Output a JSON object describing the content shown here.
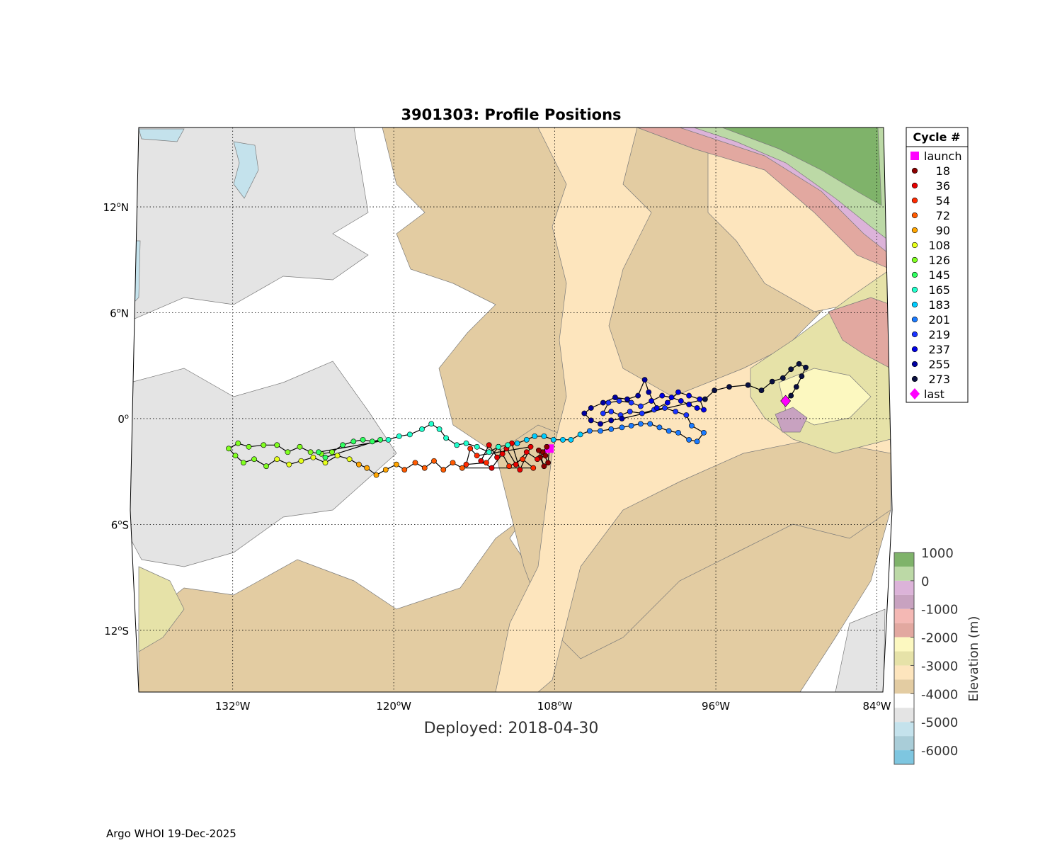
{
  "title": "3901303: Profile Positions",
  "deployed": "Deployed: 2018-04-30",
  "footer": "Argo WHOI 19-Dec-2025",
  "map": {
    "lon_range": [
      -139,
      -83.5
    ],
    "lat_range": [
      -15.5,
      16.5
    ],
    "lon_ticks": [
      {
        "value": -132,
        "label": "132",
        "hemi": "W"
      },
      {
        "value": -120,
        "label": "120",
        "hemi": "W"
      },
      {
        "value": -108,
        "label": "108",
        "hemi": "W"
      },
      {
        "value": -96,
        "label": "96",
        "hemi": "W"
      },
      {
        "value": -84,
        "label": "84",
        "hemi": "W"
      }
    ],
    "lat_ticks": [
      {
        "value": 12,
        "label": "12",
        "hemi": "N"
      },
      {
        "value": 6,
        "label": "6",
        "hemi": "N"
      },
      {
        "value": 0,
        "label": "0",
        "hemi": ""
      },
      {
        "value": -6,
        "label": "6",
        "hemi": "S"
      },
      {
        "value": -12,
        "label": "12",
        "hemi": "S"
      }
    ],
    "grid": true
  },
  "legend": {
    "header": "Cycle #",
    "placement": "right",
    "items": [
      {
        "label": "launch",
        "color": "#ff00ff",
        "marker": "square"
      },
      {
        "label": "18",
        "color": "#8b0000",
        "marker": "dot"
      },
      {
        "label": "36",
        "color": "#e60000",
        "marker": "dot"
      },
      {
        "label": "54",
        "color": "#ff2a00",
        "marker": "dot"
      },
      {
        "label": "72",
        "color": "#ff5a00",
        "marker": "dot"
      },
      {
        "label": "90",
        "color": "#ffa500",
        "marker": "dot"
      },
      {
        "label": "108",
        "color": "#e6ff1a",
        "marker": "dot"
      },
      {
        "label": "126",
        "color": "#80ff20",
        "marker": "dot"
      },
      {
        "label": "145",
        "color": "#30ff60",
        "marker": "dot"
      },
      {
        "label": "165",
        "color": "#20ffcc",
        "marker": "dot"
      },
      {
        "label": "183",
        "color": "#00ccff",
        "marker": "dot"
      },
      {
        "label": "201",
        "color": "#1a7aff",
        "marker": "dot"
      },
      {
        "label": "219",
        "color": "#1a33ff",
        "marker": "dot"
      },
      {
        "label": "237",
        "color": "#0000e6",
        "marker": "dot"
      },
      {
        "label": "255",
        "color": "#0000a0",
        "marker": "dot"
      },
      {
        "label": "273",
        "color": "#0a1040",
        "marker": "dot"
      },
      {
        "label": "last",
        "color": "#ff00ff",
        "marker": "diamond"
      }
    ]
  },
  "colorbar": {
    "label": "Elevation (m)",
    "tick_labels": [
      "1000",
      "0",
      "-1000",
      "-2000",
      "-3000",
      "-4000",
      "-5000",
      "-6000"
    ],
    "tick_values": [
      1000,
      0,
      -1000,
      -2000,
      -3000,
      -4000,
      -5000,
      -6000
    ],
    "range": [
      -6500,
      1000
    ],
    "bands": [
      {
        "from": 500,
        "to": 1000,
        "color": "#7fb36a"
      },
      {
        "from": 0,
        "to": 500,
        "color": "#bcd9a6"
      },
      {
        "from": -500,
        "to": 0,
        "color": "#dcb3d9"
      },
      {
        "from": -1000,
        "to": -500,
        "color": "#c8a2c0"
      },
      {
        "from": -1500,
        "to": -1000,
        "color": "#f4b8b4"
      },
      {
        "from": -2000,
        "to": -1500,
        "color": "#e2a8a0"
      },
      {
        "from": -2500,
        "to": -2000,
        "color": "#fcf8c0"
      },
      {
        "from": -3000,
        "to": -2500,
        "color": "#e6e2a8"
      },
      {
        "from": -3500,
        "to": -3000,
        "color": "#fde5bd"
      },
      {
        "from": -4000,
        "to": -3500,
        "color": "#e3cca2"
      },
      {
        "from": -4500,
        "to": -4000,
        "color": "#ffffff"
      },
      {
        "from": -5000,
        "to": -4500,
        "color": "#e4e4e4"
      },
      {
        "from": -5500,
        "to": -5000,
        "color": "#c4e2ec"
      },
      {
        "from": -6000,
        "to": -5500,
        "color": "#a9cdd8"
      },
      {
        "from": -6500,
        "to": -6000,
        "color": "#7ec6e0"
      }
    ]
  },
  "trajectory": [
    {
      "color": "#ff00ff",
      "points": [
        [
          -108.4,
          -1.7
        ]
      ]
    },
    {
      "color": "#8b0000",
      "points": [
        [
          -108.5,
          -2.5
        ],
        [
          -108.9,
          -1.9
        ],
        [
          -108.6,
          -1.6
        ],
        [
          -109.1,
          -2.2
        ],
        [
          -108.8,
          -2.7
        ],
        [
          -109.2,
          -1.8
        ],
        [
          -108.7,
          -2.1
        ]
      ]
    },
    {
      "color": "#e60000",
      "points": [
        [
          -109.3,
          -2.3
        ],
        [
          -110.1,
          -1.9
        ],
        [
          -110.9,
          -2.6
        ],
        [
          -111.6,
          -1.7
        ],
        [
          -112.3,
          -2.2
        ],
        [
          -112.9,
          -1.5
        ],
        [
          -113.5,
          -2.4
        ],
        [
          -112.7,
          -2.8
        ],
        [
          -111.9,
          -2.0
        ],
        [
          -111.2,
          -1.4
        ],
        [
          -110.6,
          -2.9
        ],
        [
          -109.8,
          -1.6
        ]
      ]
    },
    {
      "color": "#ff2a00",
      "points": [
        [
          -113.8,
          -2.1
        ],
        [
          -114.3,
          -1.7
        ],
        [
          -114.6,
          -2.6
        ],
        [
          -113.1,
          -2.5
        ],
        [
          -112.2,
          -1.6
        ],
        [
          -111.4,
          -2.7
        ],
        [
          -110.4,
          -2.3
        ],
        [
          -109.6,
          -2.8
        ]
      ]
    },
    {
      "color": "#ff5a00",
      "points": [
        [
          -114.9,
          -2.8
        ],
        [
          -115.6,
          -2.5
        ],
        [
          -116.3,
          -2.9
        ],
        [
          -117.0,
          -2.4
        ],
        [
          -117.7,
          -2.8
        ],
        [
          -118.4,
          -2.5
        ],
        [
          -119.2,
          -2.9
        ]
      ]
    },
    {
      "color": "#ffa500",
      "points": [
        [
          -119.8,
          -2.6
        ],
        [
          -120.6,
          -2.9
        ],
        [
          -121.3,
          -3.2
        ],
        [
          -122.0,
          -2.8
        ],
        [
          -122.6,
          -2.6
        ]
      ]
    },
    {
      "color": "#e6ff1a",
      "points": [
        [
          -123.3,
          -2.3
        ],
        [
          -124.2,
          -2.1
        ],
        [
          -125.1,
          -2.5
        ],
        [
          -126.0,
          -2.2
        ],
        [
          -126.9,
          -2.4
        ],
        [
          -127.8,
          -2.6
        ],
        [
          -128.7,
          -2.3
        ]
      ]
    },
    {
      "color": "#80ff20",
      "points": [
        [
          -129.5,
          -2.7
        ],
        [
          -130.4,
          -2.3
        ],
        [
          -131.2,
          -2.5
        ],
        [
          -131.8,
          -2.1
        ],
        [
          -132.3,
          -1.7
        ],
        [
          -131.6,
          -1.4
        ],
        [
          -130.8,
          -1.6
        ],
        [
          -129.7,
          -1.5
        ],
        [
          -128.7,
          -1.5
        ],
        [
          -127.9,
          -1.9
        ],
        [
          -127.0,
          -1.6
        ],
        [
          -126.2,
          -1.9
        ],
        [
          -125.4,
          -2.0
        ],
        [
          -124.6,
          -1.9
        ]
      ]
    },
    {
      "color": "#30ff60",
      "points": [
        [
          -123.8,
          -1.5
        ],
        [
          -123.0,
          -1.3
        ],
        [
          -122.3,
          -1.2
        ],
        [
          -121.6,
          -1.3
        ],
        [
          -121.0,
          -1.2
        ],
        [
          -125.1,
          -2.2
        ],
        [
          -125.6,
          -1.9
        ]
      ]
    },
    {
      "color": "#20ffcc",
      "points": [
        [
          -120.4,
          -1.2
        ],
        [
          -119.6,
          -1.0
        ],
        [
          -118.8,
          -0.9
        ],
        [
          -117.9,
          -0.6
        ],
        [
          -117.2,
          -0.3
        ],
        [
          -116.6,
          -0.6
        ],
        [
          -116.1,
          -1.1
        ],
        [
          -115.3,
          -1.5
        ],
        [
          -114.6,
          -1.4
        ],
        [
          -113.8,
          -1.6
        ],
        [
          -112.9,
          -1.9
        ],
        [
          -112.2,
          -1.6
        ],
        [
          -111.5,
          -1.5
        ]
      ]
    },
    {
      "color": "#00ccff",
      "points": [
        [
          -110.8,
          -1.4
        ],
        [
          -110.1,
          -1.2
        ],
        [
          -109.5,
          -1.0
        ],
        [
          -108.8,
          -1.0
        ],
        [
          -108.1,
          -1.2
        ],
        [
          -107.4,
          -1.2
        ],
        [
          -106.8,
          -1.2
        ],
        [
          -106.1,
          -0.9
        ]
      ]
    },
    {
      "color": "#1a7aff",
      "points": [
        [
          -105.4,
          -0.7
        ],
        [
          -104.6,
          -0.7
        ],
        [
          -103.8,
          -0.6
        ],
        [
          -103.0,
          -0.5
        ],
        [
          -102.3,
          -0.4
        ],
        [
          -101.6,
          -0.3
        ],
        [
          -100.9,
          -0.3
        ],
        [
          -100.2,
          -0.5
        ],
        [
          -99.5,
          -0.7
        ],
        [
          -98.8,
          -0.8
        ],
        [
          -98.0,
          -1.2
        ],
        [
          -97.4,
          -1.3
        ],
        [
          -96.9,
          -0.8
        ],
        [
          -97.8,
          -0.4
        ]
      ]
    },
    {
      "color": "#1a33ff",
      "points": [
        [
          -98.2,
          0.2
        ],
        [
          -99.0,
          0.4
        ],
        [
          -99.8,
          0.6
        ],
        [
          -100.6,
          0.5
        ],
        [
          -101.5,
          0.3
        ],
        [
          -102.4,
          0.4
        ],
        [
          -103.1,
          0.2
        ],
        [
          -103.8,
          0.4
        ],
        [
          -104.4,
          0.3
        ],
        [
          -104.0,
          0.9
        ],
        [
          -103.2,
          1.0
        ],
        [
          -102.3,
          0.9
        ],
        [
          -101.6,
          0.7
        ]
      ]
    },
    {
      "color": "#0000e6",
      "points": [
        [
          -100.8,
          1.0
        ],
        [
          -100.0,
          1.3
        ],
        [
          -99.3,
          1.2
        ],
        [
          -98.6,
          1.0
        ],
        [
          -98.0,
          0.8
        ],
        [
          -97.4,
          0.6
        ],
        [
          -96.9,
          0.5
        ],
        [
          -97.2,
          1.1
        ],
        [
          -98.0,
          1.3
        ],
        [
          -98.8,
          1.5
        ],
        [
          -99.6,
          0.9
        ],
        [
          -100.4,
          0.6
        ]
      ]
    },
    {
      "color": "#0000a0",
      "points": [
        [
          -101.0,
          1.5
        ],
        [
          -101.3,
          2.2
        ],
        [
          -101.8,
          1.3
        ],
        [
          -102.6,
          1.1
        ],
        [
          -103.5,
          1.2
        ],
        [
          -104.4,
          0.9
        ],
        [
          -105.3,
          0.6
        ],
        [
          -105.8,
          0.3
        ],
        [
          -105.3,
          -0.1
        ],
        [
          -104.6,
          -0.3
        ],
        [
          -103.8,
          -0.1
        ],
        [
          -103.0,
          0.0
        ]
      ]
    },
    {
      "color": "#0a1040",
      "points": [
        [
          -96.8,
          1.1
        ],
        [
          -96.1,
          1.6
        ],
        [
          -95.0,
          1.8
        ],
        [
          -93.6,
          1.9
        ],
        [
          -92.6,
          1.6
        ],
        [
          -91.8,
          2.1
        ],
        [
          -91.0,
          2.3
        ],
        [
          -90.4,
          2.8
        ],
        [
          -89.8,
          3.1
        ],
        [
          -89.3,
          2.9
        ],
        [
          -89.6,
          2.4
        ],
        [
          -90.0,
          1.8
        ],
        [
          -90.4,
          1.3
        ]
      ]
    },
    {
      "color": "#ff00ff",
      "points": [
        [
          -90.8,
          1.0
        ]
      ]
    }
  ]
}
